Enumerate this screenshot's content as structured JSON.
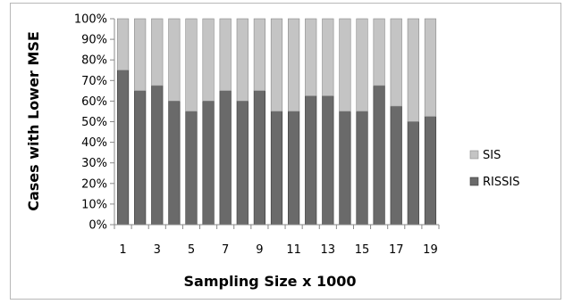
{
  "chart_data": {
    "type": "bar",
    "stacked": true,
    "percent_stacked": true,
    "categories": [
      "1",
      "2",
      "3",
      "4",
      "5",
      "6",
      "7",
      "8",
      "9",
      "10",
      "11",
      "12",
      "13",
      "14",
      "15",
      "16",
      "17",
      "18",
      "19"
    ],
    "x_tick_labels_shown": [
      "1",
      "3",
      "5",
      "7",
      "9",
      "11",
      "13",
      "15",
      "17",
      "19"
    ],
    "series": [
      {
        "name": "RISSIS",
        "color": "#6a6a6a",
        "values": [
          75,
          65,
          67.5,
          60,
          55,
          60,
          65,
          60,
          65,
          55,
          55,
          62.5,
          62.5,
          55,
          55,
          67.5,
          57.5,
          50,
          52.5
        ]
      },
      {
        "name": "SIS",
        "color": "#c4c4c4",
        "values": [
          25,
          35,
          32.5,
          40,
          45,
          40,
          35,
          40,
          35,
          45,
          45,
          37.5,
          37.5,
          45,
          45,
          32.5,
          42.5,
          50,
          47.5
        ]
      }
    ],
    "xlabel": "Sampling Size x 1000",
    "ylabel": "Cases with Lower MSE",
    "ylim": [
      0,
      100
    ],
    "y_ticks": [
      "0%",
      "10%",
      "20%",
      "30%",
      "40%",
      "50%",
      "60%",
      "70%",
      "80%",
      "90%",
      "100%"
    ],
    "grid": false,
    "legend": {
      "placement": "right",
      "entries": [
        "SIS",
        "RISSIS"
      ]
    }
  }
}
